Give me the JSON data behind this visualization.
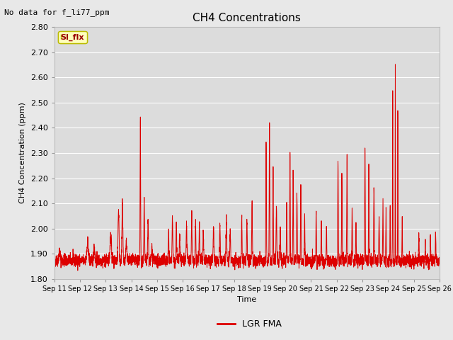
{
  "title": "CH4 Concentrations",
  "top_left_text": "No data for f_li77_ppm",
  "xlabel": "Time",
  "ylabel": "CH4 Concentration (ppm)",
  "ylim": [
    1.8,
    2.8
  ],
  "yticks": [
    1.8,
    1.9,
    2.0,
    2.1,
    2.2,
    2.3,
    2.4,
    2.5,
    2.6,
    2.7,
    2.8
  ],
  "xtick_labels": [
    "Sep 11",
    "Sep 12",
    "Sep 13",
    "Sep 14",
    "Sep 15",
    "Sep 16",
    "Sep 17",
    "Sep 18",
    "Sep 19",
    "Sep 20",
    "Sep 21",
    "Sep 22",
    "Sep 23",
    "Sep 24",
    "Sep 25",
    "Sep 26"
  ],
  "line_color": "#dd0000",
  "line_label": "LGR FMA",
  "legend_label": "SI_flx",
  "legend_box_facecolor": "#ffffbb",
  "legend_box_edgecolor": "#bbbb00",
  "legend_text_color": "#990000",
  "fig_facecolor": "#e8e8e8",
  "axes_facecolor": "#dcdcdc",
  "grid_color": "#ffffff",
  "title_fontsize": 11,
  "axis_label_fontsize": 8,
  "tick_fontsize": 8
}
